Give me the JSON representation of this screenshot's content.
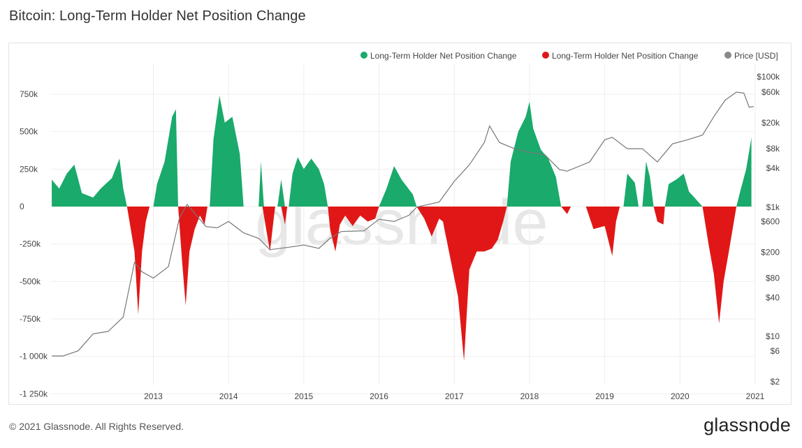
{
  "page": {
    "title": "Bitcoin: Long-Term Holder Net Position Change",
    "copyright": "© 2021 Glassnode. All Rights Reserved.",
    "brand": "glassnode",
    "watermark": "glassnode"
  },
  "colors": {
    "positive": "#1aaa6b",
    "negative": "#e11717",
    "price": "#777777",
    "grid": "#eeeeee"
  },
  "chart_data": {
    "type": "area",
    "title": "Bitcoin: Long-Term Holder Net Position Change",
    "legend_position": "top-right",
    "legend": [
      {
        "label": "Long-Term Holder Net Position Change",
        "color": "#1aaa6b"
      },
      {
        "label": "Long-Term Holder Net Position Change",
        "color": "#e11717"
      },
      {
        "label": "Price [USD]",
        "color": "#888888"
      }
    ],
    "x_ticks": [
      "2013",
      "2014",
      "2015",
      "2016",
      "2017",
      "2018",
      "2019",
      "2020",
      "2021"
    ],
    "y_left_ticks": [
      "750k",
      "500k",
      "250k",
      "0",
      "-250k",
      "-500k",
      "-750k",
      "-1 000k",
      "-1 250k"
    ],
    "y_left_values": [
      750000,
      500000,
      250000,
      0,
      -250000,
      -500000,
      -750000,
      -1000000,
      -1250000
    ],
    "y_left_range": [
      -1250000,
      850000
    ],
    "y_right_ticks": [
      "$100k",
      "$60k",
      "$20k",
      "$8k",
      "$4k",
      "$1k",
      "$600",
      "$200",
      "$80",
      "$40",
      "$10",
      "$6",
      "$2"
    ],
    "y_right_values": [
      100000,
      60000,
      20000,
      8000,
      4000,
      1000,
      600,
      200,
      80,
      40,
      10,
      6,
      2
    ],
    "y_right_scale": "log",
    "grid": true,
    "series": [
      {
        "name": "Long-Term Holder Net Position Change",
        "color": "#1aaa6b",
        "points": [
          [
            2012.15,
            180000
          ],
          [
            2012.25,
            120000
          ],
          [
            2012.35,
            220000
          ],
          [
            2012.45,
            280000
          ],
          [
            2012.55,
            90000
          ],
          [
            2012.7,
            60000
          ],
          [
            2012.8,
            120000
          ],
          [
            2012.95,
            190000
          ],
          [
            2013.05,
            320000
          ],
          [
            2013.1,
            120000
          ],
          [
            2013.15,
            0
          ],
          [
            2013.5,
            0
          ],
          [
            2013.55,
            150000
          ],
          [
            2013.65,
            300000
          ],
          [
            2013.75,
            600000
          ],
          [
            2013.8,
            650000
          ],
          [
            2013.83,
            0
          ],
          [
            2014.25,
            0
          ],
          [
            2014.3,
            450000
          ],
          [
            2014.38,
            740000
          ],
          [
            2014.45,
            560000
          ],
          [
            2014.55,
            600000
          ],
          [
            2014.65,
            350000
          ],
          [
            2014.7,
            0
          ],
          [
            2014.9,
            0
          ],
          [
            2014.93,
            300000
          ],
          [
            2014.97,
            0
          ],
          [
            2015.15,
            0
          ],
          [
            2015.2,
            180000
          ],
          [
            2015.25,
            0
          ],
          [
            2015.3,
            0
          ],
          [
            2015.35,
            220000
          ],
          [
            2015.42,
            330000
          ],
          [
            2015.5,
            250000
          ],
          [
            2015.6,
            320000
          ],
          [
            2015.7,
            250000
          ],
          [
            2015.77,
            150000
          ],
          [
            2015.82,
            0
          ],
          [
            2016.5,
            0
          ],
          [
            2016.6,
            120000
          ],
          [
            2016.7,
            270000
          ],
          [
            2016.8,
            180000
          ],
          [
            2016.95,
            80000
          ],
          [
            2017.0,
            0
          ],
          [
            2018.2,
            0
          ],
          [
            2018.25,
            300000
          ],
          [
            2018.35,
            500000
          ],
          [
            2018.45,
            600000
          ],
          [
            2018.5,
            700000
          ],
          [
            2018.55,
            520000
          ],
          [
            2018.65,
            380000
          ],
          [
            2018.75,
            320000
          ],
          [
            2018.85,
            200000
          ],
          [
            2018.92,
            0
          ],
          [
            2019.75,
            0
          ],
          [
            2019.8,
            220000
          ],
          [
            2019.9,
            160000
          ],
          [
            2019.95,
            0
          ],
          [
            2020.0,
            0
          ],
          [
            2020.05,
            300000
          ],
          [
            2020.1,
            200000
          ],
          [
            2020.15,
            0
          ],
          [
            2020.3,
            0
          ],
          [
            2020.35,
            150000
          ],
          [
            2020.45,
            180000
          ],
          [
            2020.55,
            220000
          ],
          [
            2020.62,
            100000
          ],
          [
            2020.8,
            0
          ],
          [
            2021.25,
            0
          ],
          [
            2021.3,
            100000
          ],
          [
            2021.38,
            250000
          ],
          [
            2021.45,
            460000
          ]
        ]
      },
      {
        "name": "Long-Term Holder Net Position Change",
        "color": "#e11717",
        "points": [
          [
            2013.15,
            0
          ],
          [
            2013.25,
            -300000
          ],
          [
            2013.3,
            -720000
          ],
          [
            2013.35,
            -300000
          ],
          [
            2013.4,
            -100000
          ],
          [
            2013.45,
            0
          ],
          [
            2013.83,
            0
          ],
          [
            2013.88,
            -350000
          ],
          [
            2013.93,
            -660000
          ],
          [
            2013.98,
            -300000
          ],
          [
            2014.05,
            -150000
          ],
          [
            2014.12,
            -60000
          ],
          [
            2014.18,
            -120000
          ],
          [
            2014.22,
            0
          ],
          [
            2014.95,
            0
          ],
          [
            2015.0,
            -150000
          ],
          [
            2015.05,
            -300000
          ],
          [
            2015.1,
            -80000
          ],
          [
            2015.12,
            0
          ],
          [
            2015.2,
            0
          ],
          [
            2015.25,
            -120000
          ],
          [
            2015.28,
            0
          ],
          [
            2015.82,
            0
          ],
          [
            2015.85,
            -150000
          ],
          [
            2015.92,
            -300000
          ],
          [
            2015.98,
            -120000
          ],
          [
            2016.05,
            -60000
          ],
          [
            2016.15,
            -130000
          ],
          [
            2016.25,
            -60000
          ],
          [
            2016.35,
            -100000
          ],
          [
            2016.45,
            -80000
          ],
          [
            2016.5,
            0
          ],
          [
            2017.0,
            0
          ],
          [
            2017.1,
            -80000
          ],
          [
            2017.2,
            -200000
          ],
          [
            2017.3,
            -80000
          ],
          [
            2017.35,
            -100000
          ],
          [
            2017.45,
            -350000
          ],
          [
            2017.55,
            -600000
          ],
          [
            2017.63,
            -1030000
          ],
          [
            2017.7,
            -420000
          ],
          [
            2017.8,
            -300000
          ],
          [
            2017.9,
            -300000
          ],
          [
            2018.0,
            -280000
          ],
          [
            2018.08,
            -220000
          ],
          [
            2018.15,
            -100000
          ],
          [
            2018.2,
            0
          ],
          [
            2018.92,
            0
          ],
          [
            2019.0,
            -50000
          ],
          [
            2019.05,
            0
          ],
          [
            2019.25,
            0
          ],
          [
            2019.35,
            -150000
          ],
          [
            2019.5,
            -130000
          ],
          [
            2019.6,
            -330000
          ],
          [
            2019.65,
            -100000
          ],
          [
            2019.7,
            0
          ],
          [
            2020.15,
            0
          ],
          [
            2020.2,
            -100000
          ],
          [
            2020.28,
            -120000
          ],
          [
            2020.3,
            0
          ],
          [
            2020.8,
            0
          ],
          [
            2020.88,
            -250000
          ],
          [
            2020.95,
            -450000
          ],
          [
            2021.02,
            -780000
          ],
          [
            2021.08,
            -500000
          ],
          [
            2021.15,
            -300000
          ],
          [
            2021.2,
            -150000
          ],
          [
            2021.25,
            0
          ]
        ]
      },
      {
        "name": "Price [USD]",
        "color": "#777777",
        "points": [
          [
            2012.15,
            5
          ],
          [
            2012.3,
            5
          ],
          [
            2012.5,
            6
          ],
          [
            2012.7,
            11
          ],
          [
            2012.9,
            12
          ],
          [
            2013.1,
            20
          ],
          [
            2013.25,
            140
          ],
          [
            2013.35,
            100
          ],
          [
            2013.5,
            80
          ],
          [
            2013.7,
            120
          ],
          [
            2013.85,
            700
          ],
          [
            2013.95,
            1100
          ],
          [
            2014.05,
            800
          ],
          [
            2014.2,
            500
          ],
          [
            2014.35,
            480
          ],
          [
            2014.5,
            600
          ],
          [
            2014.7,
            400
          ],
          [
            2014.9,
            330
          ],
          [
            2015.05,
            220
          ],
          [
            2015.3,
            240
          ],
          [
            2015.5,
            260
          ],
          [
            2015.7,
            230
          ],
          [
            2015.85,
            330
          ],
          [
            2016.0,
            420
          ],
          [
            2016.3,
            430
          ],
          [
            2016.5,
            650
          ],
          [
            2016.7,
            600
          ],
          [
            2016.9,
            750
          ],
          [
            2017.0,
            1000
          ],
          [
            2017.3,
            1200
          ],
          [
            2017.5,
            2500
          ],
          [
            2017.7,
            4500
          ],
          [
            2017.9,
            10000
          ],
          [
            2017.97,
            18000
          ],
          [
            2018.1,
            10000
          ],
          [
            2018.3,
            8000
          ],
          [
            2018.5,
            7000
          ],
          [
            2018.7,
            6500
          ],
          [
            2018.9,
            3800
          ],
          [
            2019.0,
            3600
          ],
          [
            2019.3,
            5000
          ],
          [
            2019.5,
            11000
          ],
          [
            2019.6,
            12000
          ],
          [
            2019.8,
            8000
          ],
          [
            2020.0,
            8000
          ],
          [
            2020.2,
            5000
          ],
          [
            2020.4,
            9500
          ],
          [
            2020.6,
            11000
          ],
          [
            2020.8,
            13000
          ],
          [
            2020.95,
            25000
          ],
          [
            2021.1,
            45000
          ],
          [
            2021.25,
            60000
          ],
          [
            2021.35,
            58000
          ],
          [
            2021.42,
            35000
          ],
          [
            2021.48,
            36000
          ]
        ]
      }
    ]
  }
}
